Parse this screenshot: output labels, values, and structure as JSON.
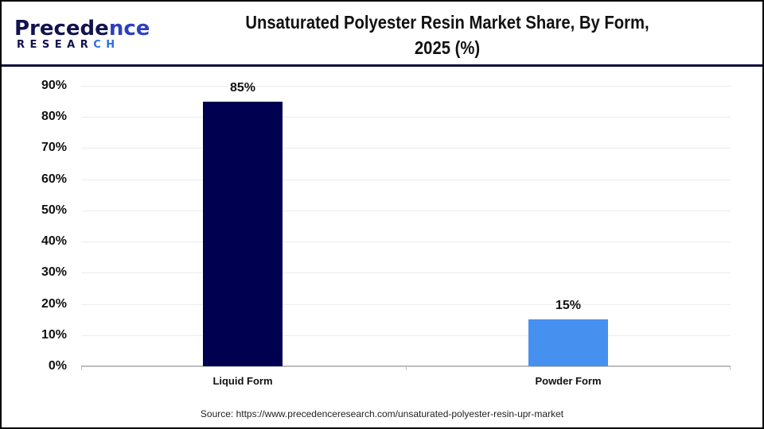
{
  "header": {
    "logo_top_main": "Precede",
    "logo_top_tail": "nce",
    "logo_bottom_main": "RESEAR",
    "logo_bottom_tail": "CH",
    "title_line1": "Unsaturated Polyester Resin Market Share, By Form,",
    "title_line2": "2025 (%)"
  },
  "colors": {
    "liquid_form": "#000050",
    "powder_form": "#4690f0",
    "header_divider": "#0b0b3b",
    "gridline": "#ececec",
    "axis": "#bdbdbd"
  },
  "y_axis": {
    "ticks": [
      "0%",
      "10%",
      "20%",
      "30%",
      "40%",
      "50%",
      "60%",
      "70%",
      "80%",
      "90%"
    ]
  },
  "bars": [
    {
      "label": "Liquid Form",
      "value": 85,
      "value_label": "85%"
    },
    {
      "label": "Powder Form",
      "value": 15,
      "value_label": "15%"
    }
  ],
  "source": "Source: https://www.precedenceresearch.com/unsaturated-polyester-resin-upr-market",
  "chart_data": {
    "type": "bar",
    "title": "Unsaturated Polyester Resin Market Share, By Form, 2025 (%)",
    "categories": [
      "Liquid Form",
      "Powder Form"
    ],
    "values": [
      85,
      15
    ],
    "colors": [
      "#000050",
      "#4690f0"
    ],
    "data_labels": [
      "85%",
      "15%"
    ],
    "xlabel": "",
    "ylabel": "",
    "ylim": [
      0,
      90
    ],
    "y_ticks": [
      0,
      10,
      20,
      30,
      40,
      50,
      60,
      70,
      80,
      90
    ],
    "y_tick_format": "percent",
    "grid": true,
    "legend": null,
    "source": "Source: https://www.precedenceresearch.com/unsaturated-polyester-resin-upr-market"
  }
}
